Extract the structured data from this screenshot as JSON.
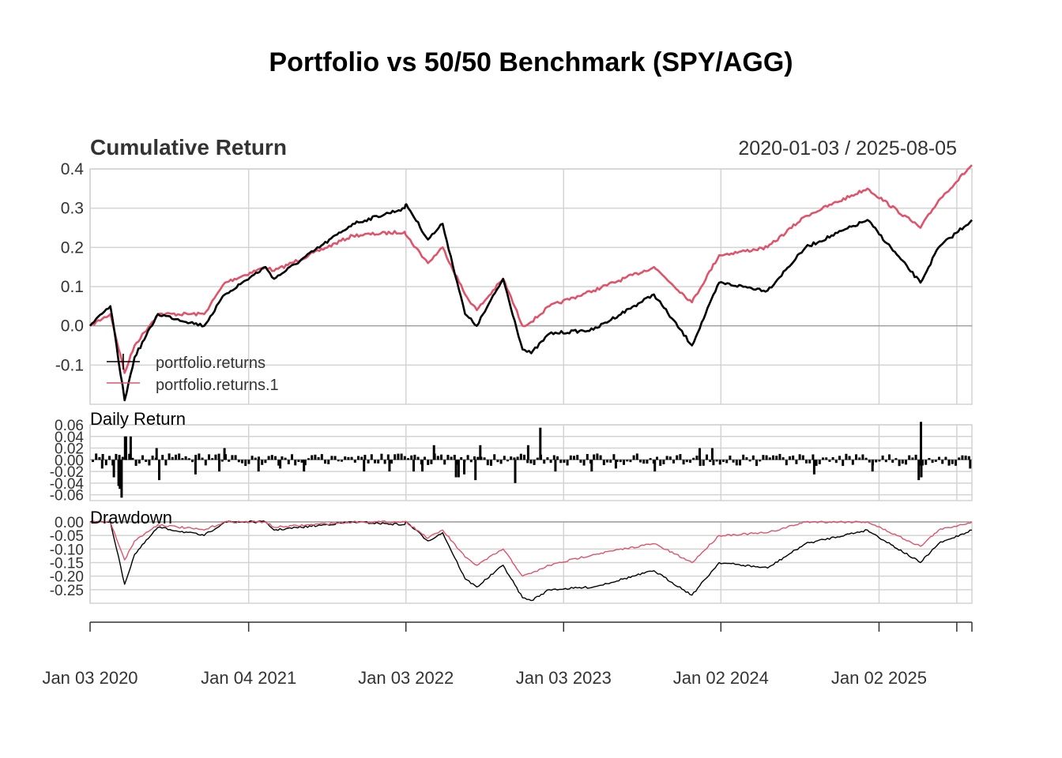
{
  "title": "Portfolio vs 50/50 Benchmark (SPY/AGG)",
  "date_range": "2020-01-03 / 2025-08-05",
  "colors": {
    "portfolio": "#000000",
    "benchmark": "#DF536B",
    "grid": "#D3D3D3",
    "zero_line": "#A0A0A0",
    "text": "#333333"
  },
  "chart_data": [
    {
      "type": "line",
      "title": "Cumulative Return",
      "ylim": [
        -0.2,
        0.4
      ],
      "yticks": [
        "0.4",
        "0.3",
        "0.2",
        "0.1",
        "0.0",
        "-0.1"
      ],
      "ytick_values": [
        0.4,
        0.3,
        0.2,
        0.1,
        0.0,
        -0.1
      ],
      "grid": true,
      "legend_position": "bottom-left",
      "legend": [
        "portfolio.returns",
        "portfolio.returns.1"
      ],
      "series": [
        {
          "name": "portfolio.returns",
          "color": "#000000",
          "x": [
            "2020-01-03",
            "2020-02-19",
            "2020-03-23",
            "2020-04-15",
            "2020-06-08",
            "2020-09-23",
            "2020-11-10",
            "2021-02-12",
            "2021-03-04",
            "2021-09-02",
            "2021-12-31",
            "2022-01-04",
            "2022-02-23",
            "2022-03-29",
            "2022-05-20",
            "2022-06-16",
            "2022-08-16",
            "2022-09-30",
            "2022-10-20",
            "2022-12-01",
            "2023-03-13",
            "2023-07-31",
            "2023-10-27",
            "2023-12-29",
            "2024-04-19",
            "2024-07-16",
            "2024-12-06",
            "2025-04-08",
            "2025-05-20",
            "2025-08-05"
          ],
          "values": [
            0.0,
            0.05,
            -0.19,
            -0.08,
            0.03,
            0.0,
            0.08,
            0.15,
            0.12,
            0.26,
            0.3,
            0.31,
            0.22,
            0.26,
            0.03,
            0.0,
            0.12,
            -0.06,
            -0.07,
            -0.02,
            -0.01,
            0.08,
            -0.05,
            0.11,
            0.09,
            0.2,
            0.27,
            0.11,
            0.2,
            0.27
          ]
        },
        {
          "name": "portfolio.returns.1",
          "color": "#DF536B",
          "x": [
            "2020-01-03",
            "2020-02-19",
            "2020-03-23",
            "2020-04-15",
            "2020-06-08",
            "2020-09-23",
            "2020-11-10",
            "2021-02-12",
            "2021-03-04",
            "2021-09-02",
            "2021-12-31",
            "2022-01-04",
            "2022-02-23",
            "2022-03-29",
            "2022-05-20",
            "2022-06-16",
            "2022-08-16",
            "2022-09-30",
            "2022-10-20",
            "2022-12-01",
            "2023-03-13",
            "2023-07-31",
            "2023-10-27",
            "2023-12-29",
            "2024-04-19",
            "2024-07-16",
            "2024-12-06",
            "2025-04-08",
            "2025-05-20",
            "2025-08-05"
          ],
          "values": [
            0.0,
            0.03,
            -0.12,
            -0.05,
            0.03,
            0.03,
            0.11,
            0.15,
            0.14,
            0.23,
            0.24,
            0.23,
            0.16,
            0.2,
            0.08,
            0.04,
            0.12,
            0.0,
            0.01,
            0.05,
            0.09,
            0.15,
            0.06,
            0.18,
            0.2,
            0.28,
            0.35,
            0.25,
            0.32,
            0.41
          ]
        }
      ]
    },
    {
      "type": "bar",
      "title": "Daily Return",
      "ylim": [
        -0.07,
        0.06
      ],
      "yticks": [
        "0.06",
        "0.04",
        "0.02",
        "0.00",
        "-0.02",
        "-0.04",
        "-0.06"
      ],
      "ytick_values": [
        0.06,
        0.04,
        0.02,
        0.0,
        -0.02,
        -0.04,
        -0.06
      ],
      "series": [
        {
          "name": "portfolio.returns",
          "x": [
            "2020-01-31",
            "2020-02-27",
            "2020-03-09",
            "2020-03-12",
            "2020-03-16",
            "2020-03-24",
            "2020-03-26",
            "2020-04-06",
            "2020-06-11",
            "2020-06-05",
            "2020-09-03",
            "2020-10-28",
            "2020-11-09",
            "2021-01-27",
            "2021-03-18",
            "2021-05-12",
            "2021-09-28",
            "2021-11-26",
            "2022-01-21",
            "2022-02-10",
            "2022-03-09",
            "2022-04-29",
            "2022-05-05",
            "2022-05-18",
            "2022-06-13",
            "2022-06-24",
            "2022-09-13",
            "2022-10-13",
            "2022-11-10",
            "2022-12-15",
            "2023-03-09",
            "2023-05-04",
            "2023-08-02",
            "2023-11-14",
            "2023-12-13",
            "2024-08-05",
            "2024-12-18",
            "2025-04-04",
            "2025-04-07",
            "2025-04-09",
            "2025-04-10",
            "2025-06-13",
            "2025-08-01"
          ],
          "values": [
            -0.015,
            -0.03,
            -0.045,
            -0.05,
            -0.065,
            0.04,
            0.04,
            0.04,
            -0.035,
            0.02,
            -0.025,
            -0.02,
            0.02,
            -0.02,
            -0.015,
            -0.02,
            -0.02,
            -0.02,
            -0.02,
            -0.02,
            0.025,
            -0.03,
            -0.03,
            -0.025,
            -0.035,
            0.025,
            -0.04,
            0.025,
            0.055,
            -0.02,
            -0.02,
            -0.015,
            -0.02,
            0.02,
            0.02,
            -0.025,
            -0.02,
            -0.035,
            -0.01,
            0.065,
            -0.03,
            -0.01,
            -0.015
          ]
        }
      ]
    },
    {
      "type": "line",
      "title": "Drawdown",
      "ylim": [
        -0.3,
        0.0
      ],
      "yticks": [
        "0.00",
        "-0.05",
        "-0.10",
        "-0.15",
        "-0.20",
        "-0.25"
      ],
      "ytick_values": [
        0.0,
        -0.05,
        -0.1,
        -0.15,
        -0.2,
        -0.25
      ],
      "series": [
        {
          "name": "portfolio.returns",
          "color": "#000000",
          "x": [
            "2020-01-03",
            "2020-02-19",
            "2020-03-23",
            "2020-04-15",
            "2020-06-08",
            "2020-09-23",
            "2020-11-10",
            "2021-02-12",
            "2021-03-04",
            "2021-09-02",
            "2021-12-31",
            "2022-01-04",
            "2022-02-23",
            "2022-03-29",
            "2022-05-20",
            "2022-06-16",
            "2022-08-16",
            "2022-09-30",
            "2022-10-20",
            "2022-12-01",
            "2023-03-13",
            "2023-07-31",
            "2023-10-27",
            "2023-12-29",
            "2024-04-19",
            "2024-07-16",
            "2024-12-06",
            "2025-04-08",
            "2025-05-20",
            "2025-08-05"
          ],
          "values": [
            0.0,
            0.0,
            -0.23,
            -0.12,
            -0.02,
            -0.05,
            0.0,
            0.0,
            -0.03,
            0.0,
            -0.01,
            0.0,
            -0.07,
            -0.04,
            -0.21,
            -0.24,
            -0.16,
            -0.28,
            -0.29,
            -0.25,
            -0.24,
            -0.18,
            -0.27,
            -0.15,
            -0.17,
            -0.08,
            -0.03,
            -0.15,
            -0.08,
            -0.03
          ]
        },
        {
          "name": "portfolio.returns.1",
          "color": "#DF536B",
          "x": [
            "2020-01-03",
            "2020-02-19",
            "2020-03-23",
            "2020-04-15",
            "2020-06-08",
            "2020-09-23",
            "2020-11-10",
            "2021-02-12",
            "2021-03-04",
            "2021-09-02",
            "2021-12-31",
            "2022-01-04",
            "2022-02-23",
            "2022-03-29",
            "2022-05-20",
            "2022-06-16",
            "2022-08-16",
            "2022-09-30",
            "2022-10-20",
            "2022-12-01",
            "2023-03-13",
            "2023-07-31",
            "2023-10-27",
            "2023-12-29",
            "2024-04-19",
            "2024-07-16",
            "2024-12-06",
            "2025-04-08",
            "2025-05-20",
            "2025-08-05"
          ],
          "values": [
            0.0,
            0.0,
            -0.14,
            -0.07,
            -0.01,
            -0.03,
            0.0,
            0.0,
            -0.02,
            0.0,
            0.0,
            0.0,
            -0.06,
            -0.03,
            -0.13,
            -0.16,
            -0.1,
            -0.2,
            -0.19,
            -0.16,
            -0.12,
            -0.08,
            -0.15,
            -0.05,
            -0.04,
            -0.0,
            -0.0,
            -0.09,
            -0.03,
            0.0
          ]
        }
      ]
    }
  ],
  "x_axis": {
    "labels": [
      "Jan 03 2020",
      "Jan 04 2021",
      "Jan 03 2022",
      "Jan 03 2023",
      "Jan 02 2024",
      "Jan 02 2025"
    ],
    "dates": [
      "2020-01-03",
      "2021-01-04",
      "2022-01-03",
      "2023-01-03",
      "2024-01-02",
      "2025-01-02"
    ],
    "start": "2020-01-03",
    "end": "2025-08-05"
  }
}
